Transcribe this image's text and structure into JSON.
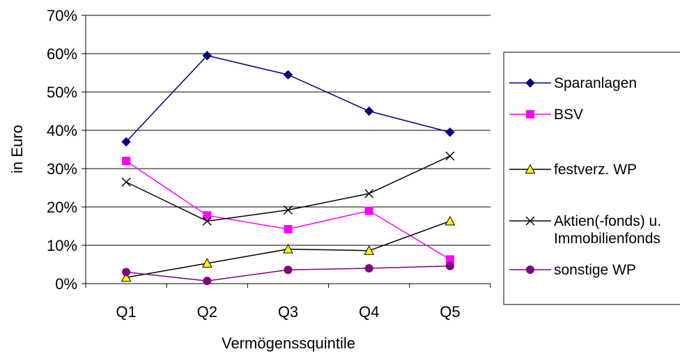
{
  "chart_data": {
    "type": "line",
    "title": "",
    "xlabel": "Vermögenssquintile",
    "ylabel": "in Euro",
    "categories": [
      "Q1",
      "Q2",
      "Q3",
      "Q4",
      "Q5"
    ],
    "ylim": [
      0,
      70
    ],
    "yticks": [
      0,
      10,
      20,
      30,
      40,
      50,
      60,
      70
    ],
    "ytick_labels": [
      "0%",
      "10%",
      "20%",
      "30%",
      "40%",
      "50%",
      "60%",
      "70%"
    ],
    "grid": "horizontal",
    "legend_position": "right",
    "series": [
      {
        "name": "Sparanlagen",
        "values": [
          37,
          59.5,
          54.5,
          45,
          39.5
        ],
        "color": "#000080",
        "marker": "diamond"
      },
      {
        "name": "BSV",
        "values": [
          32,
          17.8,
          14.2,
          19,
          6.3
        ],
        "color": "#ff00ff",
        "marker": "square"
      },
      {
        "name": "festverz. WP",
        "values": [
          1.6,
          5.3,
          9,
          8.6,
          16.3
        ],
        "color": "#000000",
        "marker": "triangle",
        "marker_fill": "#ffff00"
      },
      {
        "name": "Aktien(-fonds) u. Immobilienfonds",
        "name_lines": [
          "Aktien(-fonds) u.",
          "Immobilienfonds"
        ],
        "values": [
          26.5,
          16.3,
          19.2,
          23.5,
          33.3
        ],
        "color": "#000000",
        "marker": "x"
      },
      {
        "name": "sonstige WP",
        "values": [
          3,
          0.7,
          3.6,
          4,
          4.6
        ],
        "color": "#800080",
        "marker": "circle"
      }
    ]
  }
}
